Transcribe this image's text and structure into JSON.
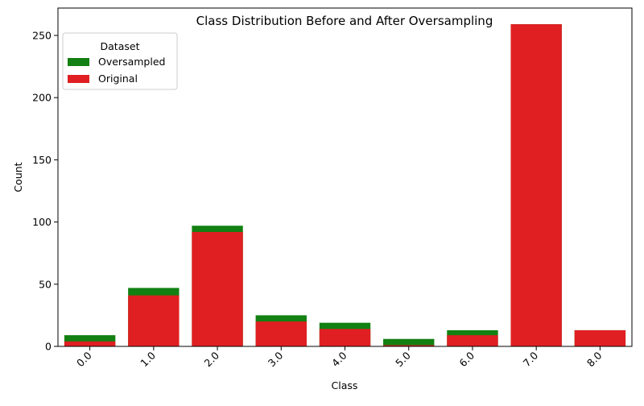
{
  "chart_data": {
    "type": "bar",
    "title": "Class Distribution Before and After Oversampling",
    "xlabel": "Class",
    "ylabel": "Count",
    "categories": [
      "0.0",
      "1.0",
      "2.0",
      "3.0",
      "4.0",
      "5.0",
      "6.0",
      "7.0",
      "8.0"
    ],
    "ylim": [
      0,
      272
    ],
    "yticks": [
      0,
      50,
      100,
      150,
      200,
      250
    ],
    "grid": false,
    "legend": {
      "title": "Dataset",
      "placement": "top-left"
    },
    "series": [
      {
        "name": "Oversampled",
        "color": "#128012",
        "values": [
          9,
          47,
          97,
          25,
          19,
          6,
          13,
          259,
          13
        ]
      },
      {
        "name": "Original",
        "color": "#e01f22",
        "values": [
          4,
          41,
          92,
          20,
          14,
          1,
          9,
          259,
          13
        ]
      }
    ]
  }
}
